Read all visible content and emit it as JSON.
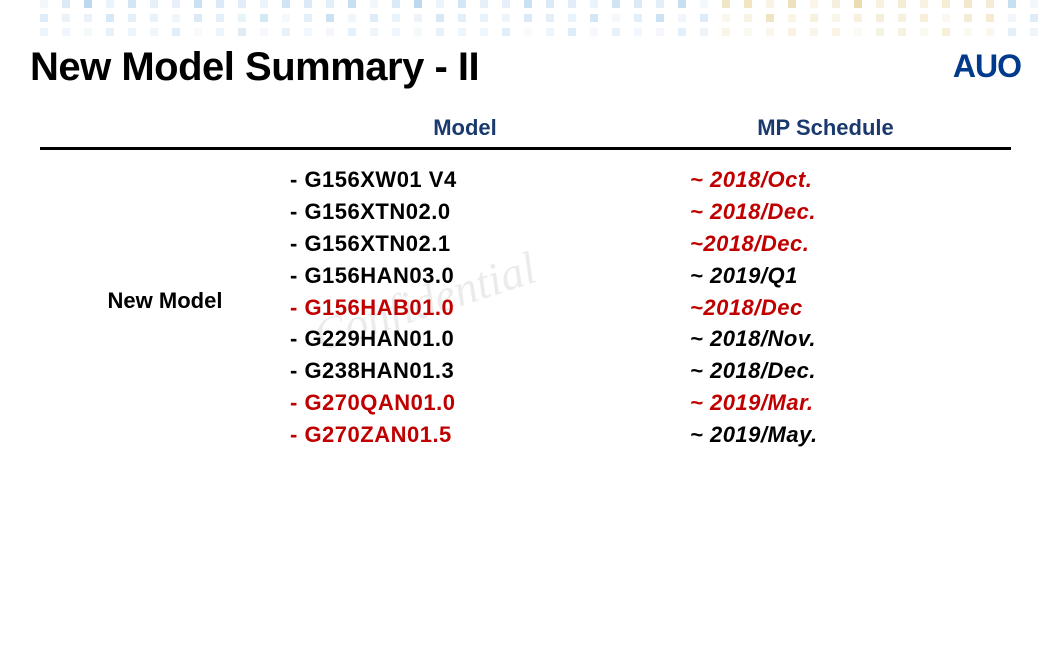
{
  "title": "New Model Summary - II",
  "logo_text": "AUO",
  "watermark_text": "Confidential",
  "table": {
    "columns": [
      "Model",
      "MP Schedule"
    ],
    "column_header_color": "#1a3a6e",
    "category_label": "New Model",
    "rows": [
      {
        "model": "- G156XW01 V4",
        "model_color": "#000000",
        "schedule": "~ 2018/Oct.",
        "schedule_color": "#c00000"
      },
      {
        "model": "- G156XTN02.0",
        "model_color": "#000000",
        "schedule": "~ 2018/Dec.",
        "schedule_color": "#c00000"
      },
      {
        "model": "- G156XTN02.1",
        "model_color": "#000000",
        "schedule": "~2018/Dec.",
        "schedule_color": "#c00000"
      },
      {
        "model": "- G156HAN03.0",
        "model_color": "#000000",
        "schedule": "~ 2019/Q1",
        "schedule_color": "#000000"
      },
      {
        "model": "- G156HAB01.0",
        "model_color": "#c00000",
        "schedule": "~2018/Dec",
        "schedule_color": "#c00000"
      },
      {
        "model": "- G229HAN01.0",
        "model_color": "#000000",
        "schedule": "~ 2018/Nov.",
        "schedule_color": "#000000"
      },
      {
        "model": "- G238HAN01.3",
        "model_color": "#000000",
        "schedule": "~ 2018/Dec.",
        "schedule_color": "#000000"
      },
      {
        "model": "- G270QAN01.0",
        "model_color": "#c00000",
        "schedule": "~ 2019/Mar.",
        "schedule_color": "#c00000"
      },
      {
        "model": "- G270ZAN01.5",
        "model_color": "#c00000",
        "schedule": "~ 2019/May.",
        "schedule_color": "#000000"
      }
    ],
    "header_fontsize": 22,
    "body_fontsize": 22,
    "border_color": "#000000"
  },
  "colors": {
    "title": "#000000",
    "logo": "#003a8c",
    "red": "#c00000",
    "black": "#000000",
    "header_navy": "#1a3a6e",
    "background": "#ffffff"
  },
  "bg_pattern": {
    "colors": [
      "#d9e8f7",
      "#c4dff2",
      "#b5d5ed",
      "#f2e6c9",
      "#e8d9a8",
      "#f0e2bc"
    ],
    "rows": 3,
    "cols": 48,
    "square_size": 8,
    "gap": 14
  }
}
